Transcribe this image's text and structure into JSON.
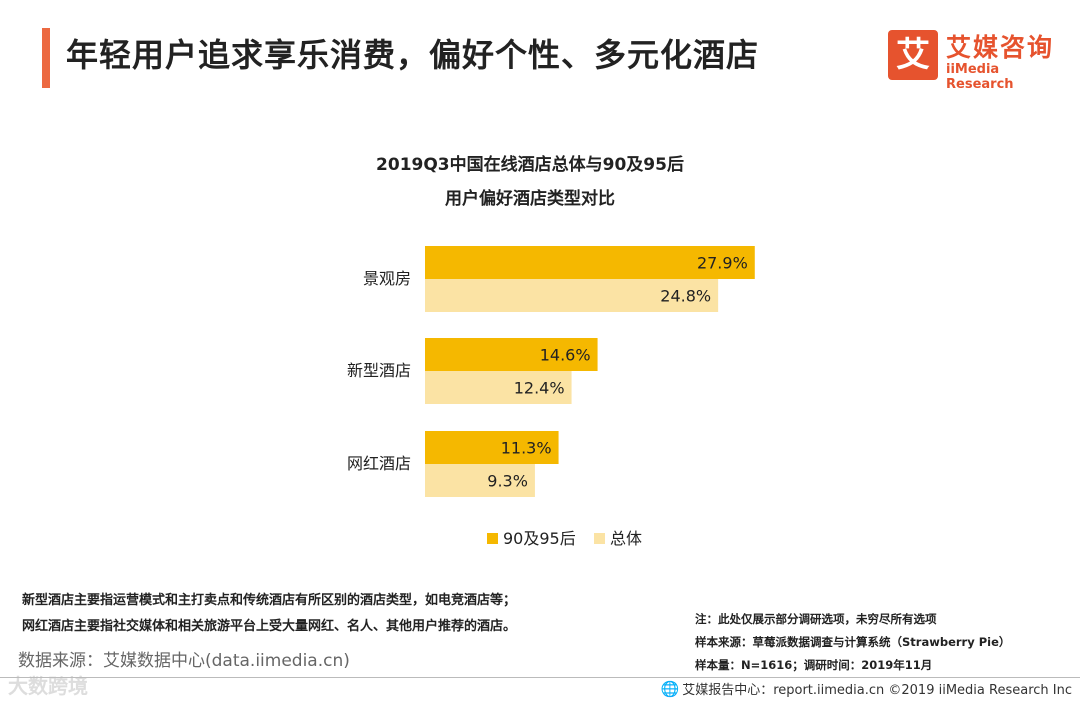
{
  "header": {
    "title": "年轻用户追求享乐消费，偏好个性、多元化酒店",
    "logo_mark": "艾",
    "logo_cn": "艾媒咨询",
    "logo_en": "iiMedia Research"
  },
  "chart_data": {
    "type": "bar",
    "orientation": "horizontal",
    "title_line1": "2019Q3中国在线酒店总体与90及95后",
    "title_line2": "用户偏好酒店类型对比",
    "categories": [
      "景观房",
      "新型酒店",
      "网红酒店"
    ],
    "series": [
      {
        "name": "90及95后",
        "values": [
          27.9,
          14.6,
          11.3
        ],
        "labels": [
          "27.9%",
          "14.6%",
          "11.3%"
        ],
        "color": "#f5b800"
      },
      {
        "name": "总体",
        "values": [
          24.8,
          12.4,
          9.3
        ],
        "labels": [
          "24.8%",
          "12.4%",
          "9.3%"
        ],
        "color": "#fbe3a4"
      }
    ],
    "xlim": [
      0,
      30
    ],
    "legend_position": "bottom-center"
  },
  "notes": {
    "line1": "新型酒店主要指运营模式和主打卖点和传统酒店有所区别的酒店类型，如电竞酒店等；",
    "line2": "网红酒店主要指社交媒体和相关旅游平台上受大量网红、名人、其他用户推荐的酒店。"
  },
  "source": "数据来源：艾媒数据中心(data.iimedia.cn)",
  "watermark": "大数跨境",
  "right_notes": {
    "note": "注：此处仅展示部分调研选项，未穷尽所有选项",
    "sample_source": "样本来源：草莓派数据调查与计算系统（Strawberry Pie）",
    "sample_size": "样本量：N=1616；调研时间：2019年11月"
  },
  "footer": {
    "icon": "globe-icon",
    "text": "艾媒报告中心：report.iimedia.cn  ©2019  iiMedia Research  Inc"
  }
}
